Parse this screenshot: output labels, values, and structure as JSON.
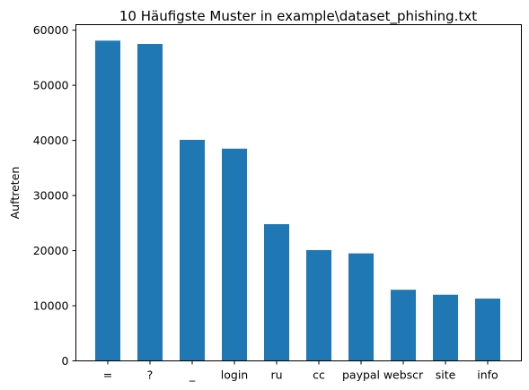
{
  "chart_data": {
    "type": "bar",
    "title": "10 Häufigste Muster in example\\dataset_phishing.txt",
    "xlabel": "",
    "ylabel": "Auftreten",
    "categories": [
      "=",
      "?",
      "_",
      "login",
      "ru",
      "cc",
      "paypal",
      "webscr",
      "site",
      "info"
    ],
    "values": [
      58100,
      57500,
      40100,
      38500,
      24800,
      20100,
      19500,
      12900,
      12000,
      11300
    ],
    "ylim": [
      0,
      61000
    ],
    "yticks": [
      0,
      10000,
      20000,
      30000,
      40000,
      50000,
      60000
    ],
    "ytick_labels": [
      "0",
      "10000",
      "20000",
      "30000",
      "40000",
      "50000",
      "60000"
    ],
    "grid": false,
    "bar_color": "#1f77b4"
  }
}
